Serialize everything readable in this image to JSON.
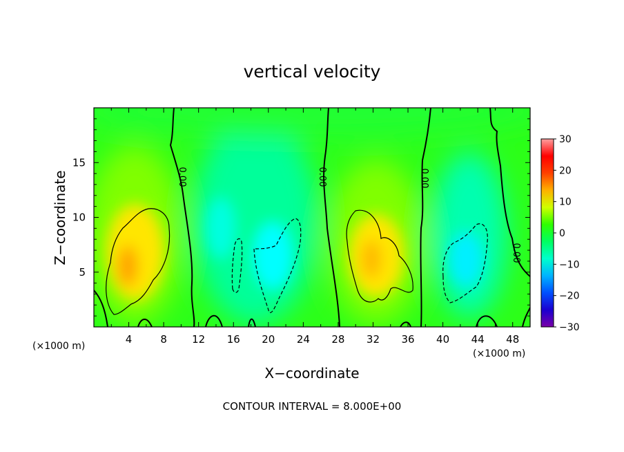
{
  "chart_data": {
    "type": "heatmap",
    "title": "vertical velocity",
    "xlabel": "X−coordinate",
    "ylabel": "Z−coordinate",
    "x_unit": "(×1000 m)",
    "x_unit_right": "(×1000 m)",
    "xlim": [
      0,
      50
    ],
    "ylim": [
      0,
      20
    ],
    "x_ticks": [
      4,
      8,
      12,
      16,
      20,
      24,
      28,
      32,
      36,
      40,
      44,
      48
    ],
    "y_ticks": [
      5,
      10,
      15
    ],
    "x_tick_labels": [
      "4",
      "8",
      "12",
      "16",
      "20",
      "24",
      "28",
      "32",
      "36",
      "40",
      "44",
      "48"
    ],
    "y_tick_labels": [
      "5",
      "10",
      "15"
    ],
    "colorbar": {
      "range": [
        -30,
        30
      ],
      "ticks": [
        30,
        20,
        10,
        0,
        -10,
        -20,
        -30
      ],
      "tick_labels": [
        "30",
        "20",
        "10",
        "0",
        "−10",
        "−20",
        "−30"
      ],
      "colors": [
        "#7a00a8",
        "#1a00d0",
        "#0050ff",
        "#00b4ff",
        "#00ffcc",
        "#00ff60",
        "#30ff00",
        "#d0ff00",
        "#ffb000",
        "#ff4000",
        "#ff0000",
        "#ffa0a0"
      ]
    },
    "contour_interval_label": "CONTOUR INTERVAL = 8.000E+00",
    "zero_contour_label": "0.00",
    "features": [
      {
        "kind": "updraft",
        "x": 5,
        "z": 6,
        "w": 12
      },
      {
        "kind": "updraft",
        "x": 32,
        "z": 6.5,
        "w": 11
      },
      {
        "kind": "downdraft",
        "x": 21,
        "z": 6,
        "w": -9
      },
      {
        "kind": "downdraft",
        "x": 43.5,
        "z": 5.5,
        "w": -10
      }
    ]
  }
}
